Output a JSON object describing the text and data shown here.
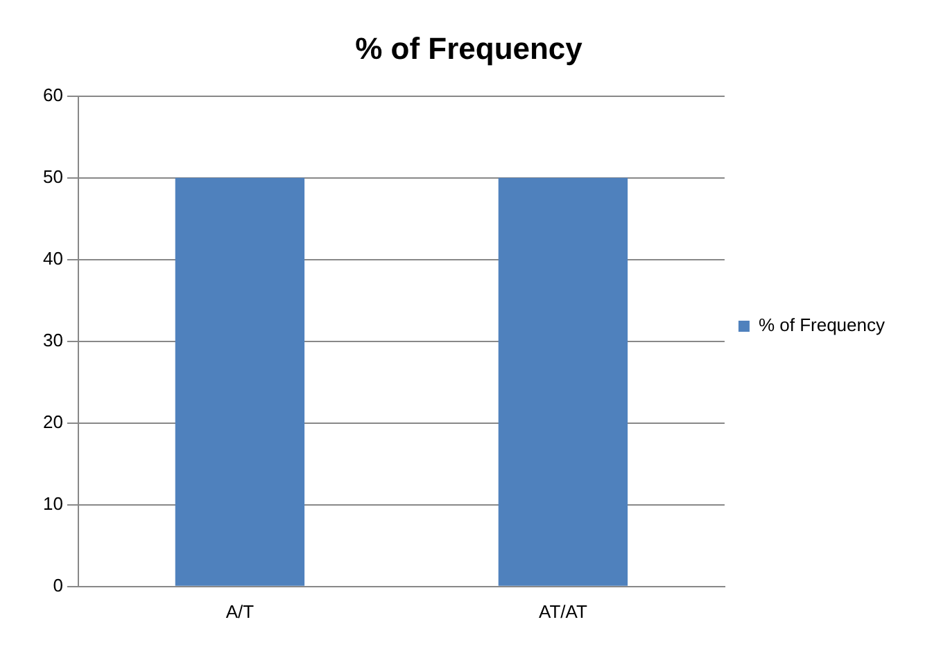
{
  "chart_data": {
    "type": "bar",
    "title": "% of Frequency",
    "categories": [
      "A/T",
      "AT/AT"
    ],
    "series": [
      {
        "name": "% of Frequency",
        "color": "#4f81bd",
        "values": [
          50,
          50
        ]
      }
    ],
    "ylim": [
      0,
      60
    ],
    "yticks": [
      0,
      10,
      20,
      30,
      40,
      50,
      60
    ],
    "grid": "y",
    "legend": "right"
  }
}
